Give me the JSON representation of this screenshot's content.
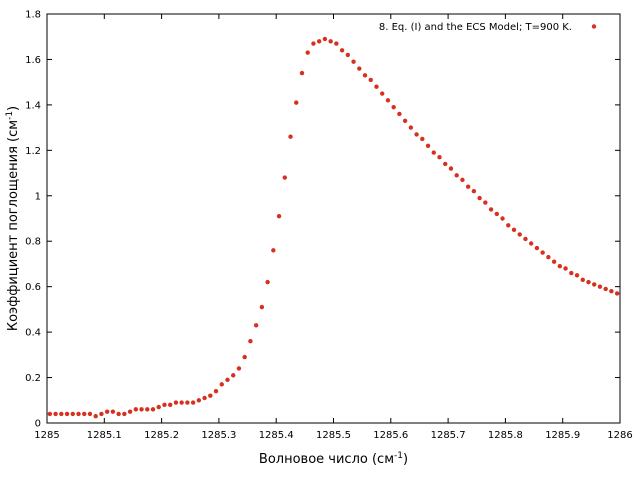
{
  "chart_data": {
    "type": "scatter",
    "title": "",
    "xlabel": "Волновое число (см",
    "xlabel_sup": "-1",
    "xlabel_tail": ")",
    "ylabel": "Коэффициент поглощения (см",
    "ylabel_sup": "-1",
    "ylabel_tail": ")",
    "xlim": [
      1285,
      1286
    ],
    "ylim": [
      0,
      1.8
    ],
    "xticks": [
      1285,
      1285.1,
      1285.2,
      1285.3,
      1285.4,
      1285.5,
      1285.6,
      1285.7,
      1285.8,
      1285.9,
      1286
    ],
    "xtick_labels": [
      "1285",
      "1285.1",
      "1285.2",
      "1285.3",
      "1285.4",
      "1285.5",
      "1285.6",
      "1285.7",
      "1285.8",
      "1285.9",
      "1286"
    ],
    "yticks": [
      0,
      0.2,
      0.4,
      0.6,
      0.8,
      1,
      1.2,
      1.4,
      1.6,
      1.8
    ],
    "ytick_labels": [
      "0",
      "0.2",
      "0.4",
      "0.6",
      "0.8",
      "1",
      "1.2",
      "1.4",
      "1.6",
      "1.8"
    ],
    "grid": false,
    "legend_position": "top-right",
    "color": "#d7301f",
    "series": [
      {
        "name": "8. Eq. (I) and the ECS Model; T=900 K.",
        "x": [
          1285.005,
          1285.015,
          1285.025,
          1285.035,
          1285.045,
          1285.055,
          1285.065,
          1285.075,
          1285.085,
          1285.095,
          1285.105,
          1285.115,
          1285.125,
          1285.135,
          1285.145,
          1285.155,
          1285.165,
          1285.175,
          1285.185,
          1285.195,
          1285.205,
          1285.215,
          1285.225,
          1285.235,
          1285.245,
          1285.255,
          1285.265,
          1285.275,
          1285.285,
          1285.295,
          1285.305,
          1285.315,
          1285.325,
          1285.335,
          1285.345,
          1285.355,
          1285.365,
          1285.375,
          1285.385,
          1285.395,
          1285.405,
          1285.415,
          1285.425,
          1285.435,
          1285.445,
          1285.455,
          1285.465,
          1285.475,
          1285.485,
          1285.495,
          1285.505,
          1285.515,
          1285.525,
          1285.535,
          1285.545,
          1285.555,
          1285.565,
          1285.575,
          1285.585,
          1285.595,
          1285.605,
          1285.615,
          1285.625,
          1285.635,
          1285.645,
          1285.655,
          1285.665,
          1285.675,
          1285.685,
          1285.695,
          1285.705,
          1285.715,
          1285.725,
          1285.735,
          1285.745,
          1285.755,
          1285.765,
          1285.775,
          1285.785,
          1285.795,
          1285.805,
          1285.815,
          1285.825,
          1285.835,
          1285.845,
          1285.855,
          1285.865,
          1285.875,
          1285.885,
          1285.895,
          1285.905,
          1285.915,
          1285.925,
          1285.935,
          1285.945,
          1285.955,
          1285.965,
          1285.975,
          1285.985,
          1285.995
        ],
        "y": [
          0.04,
          0.04,
          0.04,
          0.04,
          0.04,
          0.04,
          0.04,
          0.04,
          0.03,
          0.04,
          0.05,
          0.05,
          0.04,
          0.04,
          0.05,
          0.06,
          0.06,
          0.06,
          0.06,
          0.07,
          0.08,
          0.08,
          0.09,
          0.09,
          0.09,
          0.09,
          0.1,
          0.11,
          0.12,
          0.14,
          0.17,
          0.19,
          0.21,
          0.24,
          0.29,
          0.36,
          0.43,
          0.51,
          0.62,
          0.76,
          0.91,
          1.08,
          1.26,
          1.41,
          1.54,
          1.63,
          1.67,
          1.68,
          1.69,
          1.68,
          1.67,
          1.64,
          1.62,
          1.59,
          1.56,
          1.53,
          1.51,
          1.48,
          1.45,
          1.42,
          1.39,
          1.36,
          1.33,
          1.3,
          1.27,
          1.25,
          1.22,
          1.19,
          1.17,
          1.14,
          1.12,
          1.09,
          1.07,
          1.04,
          1.02,
          0.99,
          0.97,
          0.94,
          0.92,
          0.9,
          0.87,
          0.85,
          0.83,
          0.81,
          0.79,
          0.77,
          0.75,
          0.73,
          0.71,
          0.69,
          0.68,
          0.66,
          0.65,
          0.63,
          0.62,
          0.61,
          0.6,
          0.59,
          0.58,
          0.57
        ]
      }
    ]
  }
}
